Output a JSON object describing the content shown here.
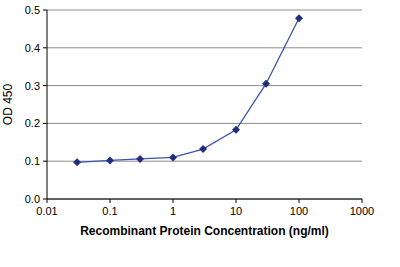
{
  "chart_data": {
    "type": "line",
    "x_label": "Recombinant Protein Concentration (ng/ml)",
    "y_label": "OD 450",
    "x": [
      0.03,
      0.1,
      0.3,
      1,
      3,
      10,
      30,
      100
    ],
    "values": [
      0.097,
      0.102,
      0.106,
      0.11,
      0.132,
      0.183,
      0.305,
      0.478
    ],
    "color": "#1f2f7d",
    "marker": "diamond",
    "line_style": "solid",
    "log": "x",
    "xlim": [
      0.01,
      1000
    ],
    "xticks": [
      0.01,
      0.1,
      1,
      10,
      100,
      1000
    ],
    "ylim": [
      0,
      0.5
    ],
    "yticks": [
      {
        "value": 0,
        "label": "0.0"
      },
      0.1,
      0.2,
      0.3,
      0.4,
      0.5
    ],
    "grid": true
  }
}
